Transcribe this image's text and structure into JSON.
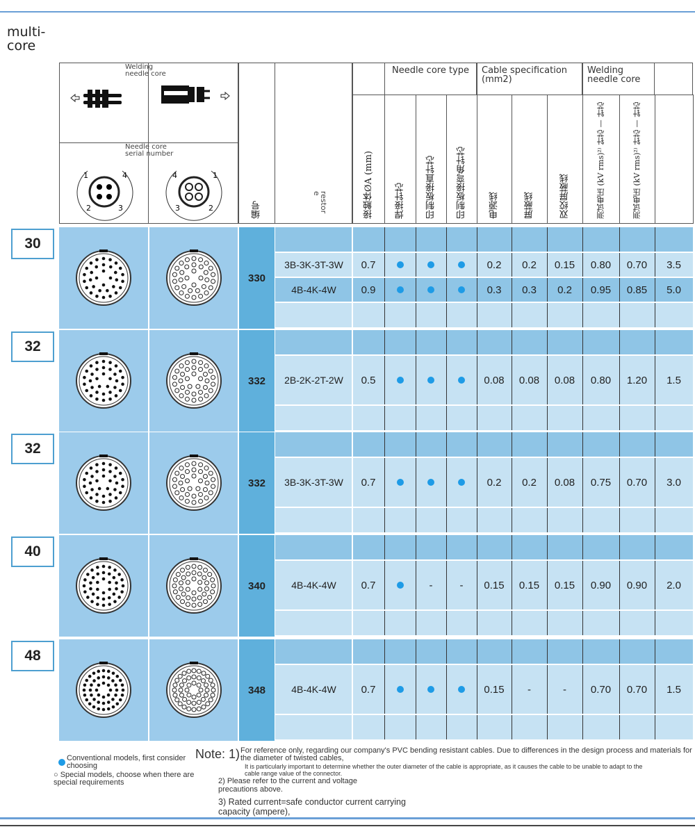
{
  "title": "multi-\ncore",
  "header": {
    "left_top_label": "Welding\nneedle core",
    "left_bottom_label": "Needle core\nserial number",
    "pin_numbers_left": [
      "1",
      "4",
      "2",
      "3"
    ],
    "pin_numbers_right": [
      "4",
      "1",
      "3",
      "2"
    ],
    "code_col": "编号",
    "variant_col": "restor\ne",
    "groups": [
      {
        "label": "Needle core type"
      },
      {
        "label": "Cable specification (mm2)"
      },
      {
        "label": "Welding needle core"
      }
    ],
    "columns": [
      "接触体ØA (mm)",
      "焊接针芯",
      "印制板接直针芯",
      "印制板接弯角针芯",
      "电源线",
      "屏蔽线",
      "双绞屏蔽线",
      "测试电压 (kV rms)²⁾ 针芯 — 针芯",
      "测试电压 (kV rms)²⁾ 针芯 — 针芯",
      ""
    ]
  },
  "colors": {
    "dot": "#1e9be6",
    "image_cell": "#9ccbeb",
    "code_cell": "#5fb0dc",
    "row_dark": "#8fc5e6",
    "row_light": "#c6e2f3"
  },
  "sections": [
    {
      "size": "30",
      "code": "330",
      "rows": [
        {
          "variant": "3B-3K-3T-3W",
          "values": [
            "0.7",
            "dot",
            "dot",
            "dot",
            "0.2",
            "0.2",
            "0.15",
            "0.80",
            "0.70",
            "3.5"
          ]
        },
        {
          "variant": "4B-4K-4W",
          "values": [
            "0.9",
            "dot",
            "dot",
            "dot",
            "0.3",
            "0.3",
            "0.2",
            "0.95",
            "0.85",
            "5.0"
          ]
        }
      ]
    },
    {
      "size": "32",
      "code": "332",
      "rows": [
        {
          "variant": "2B-2K-2T-2W",
          "values": [
            "0.5",
            "dot",
            "dot",
            "dot",
            "0.08",
            "0.08",
            "0.08",
            "0.80",
            "1.20",
            "1.5"
          ]
        }
      ]
    },
    {
      "size": "32",
      "code": "332",
      "rows": [
        {
          "variant": "3B-3K-3T-3W",
          "values": [
            "0.7",
            "dot",
            "dot",
            "dot",
            "0.2",
            "0.2",
            "0.08",
            "0.75",
            "0.70",
            "3.0"
          ]
        }
      ]
    },
    {
      "size": "40",
      "code": "340",
      "rows": [
        {
          "variant": "4B-4K-4W",
          "values": [
            "0.7",
            "dot",
            "-",
            "-",
            "0.15",
            "0.15",
            "0.15",
            "0.90",
            "0.90",
            "2.0"
          ]
        }
      ]
    },
    {
      "size": "48",
      "code": "348",
      "rows": [
        {
          "variant": "4B-4K-4W",
          "values": [
            "0.7",
            "dot",
            "dot",
            "dot",
            "0.15",
            "-",
            "-",
            "0.70",
            "0.70",
            "1.5"
          ]
        }
      ]
    }
  ],
  "legend": {
    "conventional": "Conventional models, first consider choosing",
    "special": "○ Special models, choose when there are special requirements"
  },
  "notes": {
    "label": "Note: 1)",
    "n1a": "For reference only, regarding our company's PVC bending resistant cables. Due to differences in the design process and materials for the diameter of twisted cables,",
    "n1b": "It is particularly important to determine whether the outer diameter of the cable is appropriate, as it causes the cable to be unable to adapt to the cable range value of the connector.",
    "n2": "2) Please refer to the current and voltage precautions above.",
    "n3": "3) Rated current=safe conductor current carrying capacity (ampere),"
  }
}
